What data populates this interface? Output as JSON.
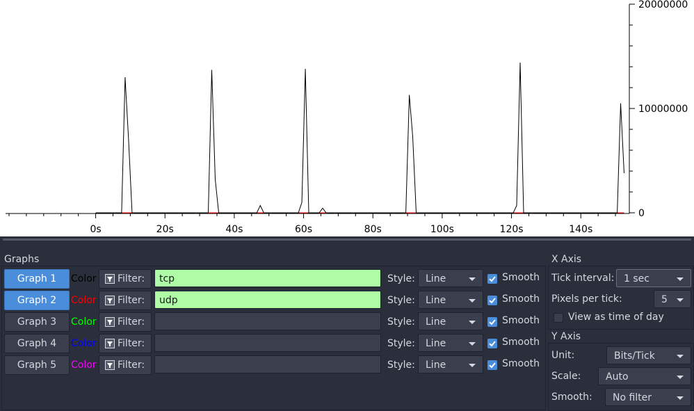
{
  "chart_data": {
    "type": "line",
    "title": "",
    "xlabel": "",
    "ylabel": "",
    "x_ticks": [
      "0s",
      "20s",
      "40s",
      "60s",
      "80s",
      "100s",
      "120s",
      "140s"
    ],
    "y_ticks": [
      "0",
      "10000000",
      "20000000"
    ],
    "xlim": [
      -26,
      154
    ],
    "ylim": [
      0,
      20000000
    ],
    "grid": false,
    "series": [
      {
        "color": "#000000",
        "points": [
          [
            0,
            0
          ],
          [
            7.5,
            0
          ],
          [
            8.5,
            13000000
          ],
          [
            9.5,
            7000000
          ],
          [
            10.5,
            0
          ],
          [
            32.5,
            0
          ],
          [
            33.5,
            13700000
          ],
          [
            34.5,
            3200000
          ],
          [
            35.5,
            0
          ],
          [
            46.5,
            0
          ],
          [
            47.5,
            700000
          ],
          [
            48.5,
            0
          ],
          [
            58.5,
            0
          ],
          [
            59.5,
            1000000
          ],
          [
            60.5,
            13800000
          ],
          [
            61.5,
            0
          ],
          [
            64.5,
            0
          ],
          [
            65.5,
            450000
          ],
          [
            66.5,
            0
          ],
          [
            89.5,
            0
          ],
          [
            90.5,
            11300000
          ],
          [
            91.5,
            7300000
          ],
          [
            92.5,
            0
          ],
          [
            120.5,
            0
          ],
          [
            121.5,
            700000
          ],
          [
            122.5,
            14400000
          ],
          [
            123.5,
            0
          ],
          [
            150.5,
            0
          ],
          [
            151.5,
            10500000
          ],
          [
            152.5,
            3800000
          ]
        ]
      },
      {
        "color": "#ff0000",
        "points": [
          [
            0,
            0
          ],
          [
            152.5,
            0
          ]
        ]
      }
    ]
  },
  "graphs_panel": {
    "title": "Graphs",
    "rows": [
      {
        "name": "Graph 1",
        "active": true,
        "color_label": "Color",
        "color": "#000000",
        "filter_label": "Filter:",
        "filter_value": "tcp",
        "filter_valid": true,
        "style_label": "Style:",
        "style_value": "Line",
        "smooth_label": "Smooth",
        "smooth_checked": true
      },
      {
        "name": "Graph 2",
        "active": true,
        "color_label": "Color",
        "color": "#ff0000",
        "filter_label": "Filter:",
        "filter_value": "udp",
        "filter_valid": true,
        "style_label": "Style:",
        "style_value": "Line",
        "smooth_label": "Smooth",
        "smooth_checked": true
      },
      {
        "name": "Graph 3",
        "active": false,
        "color_label": "Color",
        "color": "#00ff00",
        "filter_label": "Filter:",
        "filter_value": "",
        "filter_valid": false,
        "style_label": "Style:",
        "style_value": "Line",
        "smooth_label": "Smooth",
        "smooth_checked": true
      },
      {
        "name": "Graph 4",
        "active": false,
        "color_label": "Color",
        "color": "#0000ff",
        "filter_label": "Filter:",
        "filter_value": "",
        "filter_valid": false,
        "style_label": "Style:",
        "style_value": "Line",
        "smooth_label": "Smooth",
        "smooth_checked": true
      },
      {
        "name": "Graph 5",
        "active": false,
        "color_label": "Color",
        "color": "#ff00ff",
        "filter_label": "Filter:",
        "filter_value": "",
        "filter_valid": false,
        "style_label": "Style:",
        "style_value": "Line",
        "smooth_label": "Smooth",
        "smooth_checked": true
      }
    ]
  },
  "x_axis": {
    "title": "X Axis",
    "tick_interval_label": "Tick interval:",
    "tick_interval_value": "1 sec",
    "pixels_per_tick_label": "Pixels per tick:",
    "pixels_per_tick_value": "5",
    "time_of_day_label": "View as time of day",
    "time_of_day_checked": false
  },
  "y_axis": {
    "title": "Y Axis",
    "unit_label": "Unit:",
    "unit_value": "Bits/Tick",
    "scale_label": "Scale:",
    "scale_value": "Auto",
    "smooth_label": "Smooth:",
    "smooth_value": "No filter"
  },
  "icons": {
    "filter": "filter-edit-icon",
    "check": "checkmark-icon",
    "dropdown": "chevron-down-icon"
  },
  "colors": {
    "panel_bg": "#2b2e3b",
    "accent": "#4a8ddb",
    "valid_filter": "#aefca6"
  }
}
